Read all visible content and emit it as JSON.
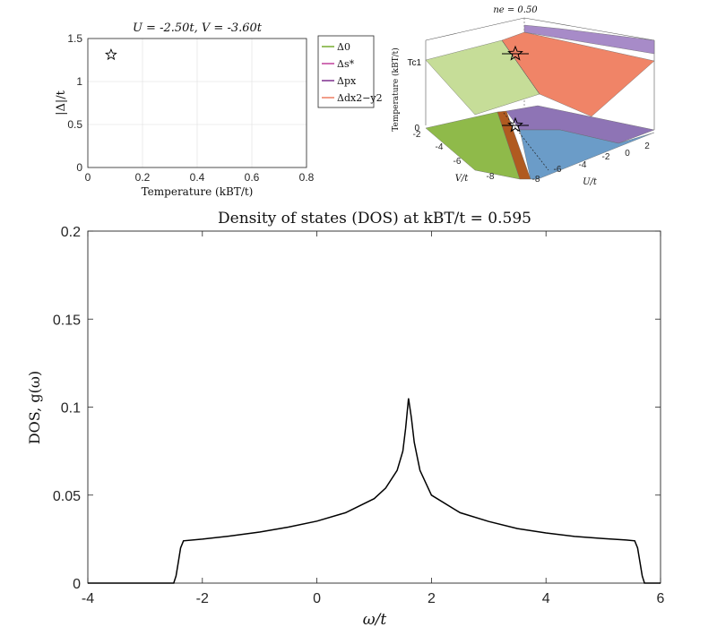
{
  "chart_data": [
    {
      "id": "gap",
      "type": "scatter",
      "title": "U = -2.50t, V = -3.60t",
      "xlabel": "Temperature (kBT/t)",
      "ylabel": "|Δ|/t",
      "xlim": [
        0,
        0.8
      ],
      "ylim": [
        0,
        1.5
      ],
      "xticks": [
        "0",
        "0.2",
        "0.4",
        "0.6",
        "0.8"
      ],
      "yticks": [
        "0",
        "0.5",
        "1",
        "1.5"
      ],
      "grid": true,
      "marker": "star",
      "points": [
        {
          "x": 0.085,
          "y": 1.31
        }
      ],
      "legend_position": "outside-right",
      "legend": [
        {
          "label": "Δ0",
          "color": "#77ac30"
        },
        {
          "label": "Δs*",
          "color": "#c0409a"
        },
        {
          "label": "Δpx",
          "color": "#7e2f8e"
        },
        {
          "label": "Δdx2−y2",
          "color": "#ee7d62"
        }
      ]
    },
    {
      "id": "phase3d",
      "type": "surface",
      "title": "ne = 0.50",
      "xlabel": "U/t",
      "ylabel": "V/t",
      "zlabel": "Temperature (kBT/t)",
      "z_tick_labels": [
        "0",
        "Tc1"
      ],
      "u_ticks": [
        "-8",
        "-6",
        "-4",
        "-2",
        "0",
        "2"
      ],
      "v_ticks": [
        "-8",
        "-6",
        "-4",
        "-2"
      ],
      "region_colors": {
        "s_wave": "#8fba4a",
        "s_star": "#b05a20",
        "p_wave": "#8e74b5",
        "d_wave": "#f08467",
        "blue": "#6b9cc8"
      }
    },
    {
      "id": "dos",
      "type": "line",
      "title": "Density of states (DOS) at kBT/t = 0.595",
      "xlabel": "ω/t",
      "ylabel": "DOS, g(ω)",
      "xlim": [
        -4,
        6
      ],
      "ylim": [
        0,
        0.2
      ],
      "xticks": [
        "-4",
        "-2",
        "0",
        "2",
        "4",
        "6"
      ],
      "yticks": [
        "0",
        "0.05",
        "0.1",
        "0.15",
        "0.2"
      ],
      "grid": false,
      "series": [
        {
          "color": "#000000",
          "x": [
            -4,
            -2.5,
            -2.46,
            -2.42,
            -2.38,
            -2.33,
            -2.0,
            -1.5,
            -1.0,
            -0.5,
            0,
            0.5,
            1.0,
            1.2,
            1.4,
            1.5,
            1.55,
            1.6,
            1.65,
            1.7,
            1.8,
            2.0,
            2.5,
            3.0,
            3.5,
            4.0,
            4.5,
            5.0,
            5.4,
            5.55,
            5.6,
            5.64,
            5.68,
            5.72,
            6
          ],
          "y": [
            0,
            0,
            0.004,
            0.012,
            0.02,
            0.024,
            0.025,
            0.0268,
            0.029,
            0.0318,
            0.0352,
            0.04,
            0.048,
            0.054,
            0.064,
            0.075,
            0.088,
            0.105,
            0.094,
            0.08,
            0.064,
            0.05,
            0.04,
            0.035,
            0.031,
            0.0285,
            0.0265,
            0.0253,
            0.0245,
            0.024,
            0.02,
            0.012,
            0.004,
            0,
            0
          ]
        }
      ]
    }
  ]
}
